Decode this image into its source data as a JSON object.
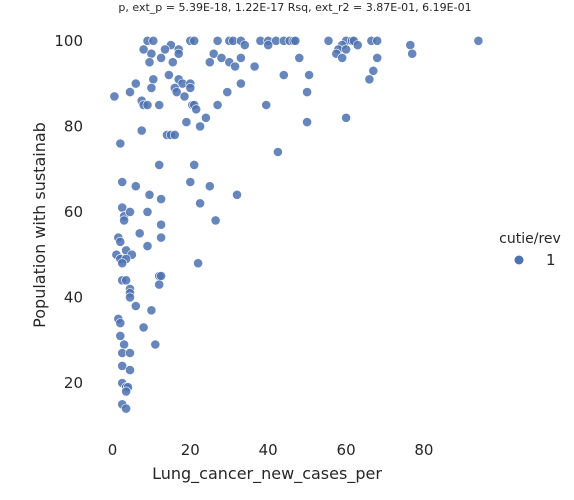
{
  "chart_data": {
    "type": "scatter",
    "title": "p, ext_p = 5.39E-18, 1.22E-17 Rsq, ext_r2 = 3.87E-01, 6.19E-01",
    "xlabel": "Lung_cancer_new_cases_per",
    "ylabel": "Population with sustainab",
    "xlim": [
      -5,
      98
    ],
    "ylim": [
      9,
      103
    ],
    "xticks": [
      0,
      20,
      40,
      60,
      80
    ],
    "yticks": [
      20,
      40,
      60,
      80,
      100
    ],
    "grid": false,
    "legend": {
      "title": "cutie/rev",
      "placement": "right",
      "entries": [
        "1"
      ]
    },
    "series": [
      {
        "name": "1",
        "color": "#4c72b0",
        "points": [
          [
            9,
            100
          ],
          [
            10.5,
            100
          ],
          [
            20,
            100
          ],
          [
            21,
            100
          ],
          [
            27,
            100
          ],
          [
            30,
            100
          ],
          [
            31,
            100
          ],
          [
            33,
            100
          ],
          [
            38,
            100
          ],
          [
            40,
            100
          ],
          [
            42,
            100
          ],
          [
            44,
            100
          ],
          [
            45.5,
            100
          ],
          [
            46.5,
            100
          ],
          [
            47,
            100
          ],
          [
            55.5,
            100
          ],
          [
            60,
            100
          ],
          [
            61.5,
            100
          ],
          [
            62,
            100
          ],
          [
            66.5,
            100
          ],
          [
            68,
            100
          ],
          [
            94,
            100
          ],
          [
            15,
            99
          ],
          [
            34,
            99
          ],
          [
            40,
            99
          ],
          [
            59,
            99
          ],
          [
            63,
            99
          ],
          [
            76.5,
            99
          ],
          [
            8,
            98
          ],
          [
            13.5,
            98
          ],
          [
            17,
            98
          ],
          [
            58,
            98
          ],
          [
            60,
            98
          ],
          [
            10,
            97
          ],
          [
            17,
            97
          ],
          [
            26,
            97
          ],
          [
            57.5,
            97
          ],
          [
            77,
            97
          ],
          [
            12.5,
            96
          ],
          [
            28,
            96
          ],
          [
            33,
            96
          ],
          [
            48,
            96
          ],
          [
            59,
            96
          ],
          [
            68,
            96
          ],
          [
            9.5,
            95
          ],
          [
            15.5,
            95
          ],
          [
            25,
            95
          ],
          [
            30,
            95
          ],
          [
            31.5,
            94
          ],
          [
            36.5,
            94
          ],
          [
            67,
            93
          ],
          [
            14.5,
            92
          ],
          [
            44,
            92
          ],
          [
            50.5,
            92
          ],
          [
            10.5,
            91
          ],
          [
            17,
            91
          ],
          [
            66,
            91
          ],
          [
            6,
            90
          ],
          [
            18,
            90
          ],
          [
            20,
            90
          ],
          [
            33,
            90
          ],
          [
            16,
            89
          ],
          [
            20,
            89
          ],
          [
            10,
            89
          ],
          [
            4.5,
            88
          ],
          [
            16.5,
            88
          ],
          [
            29.5,
            88
          ],
          [
            50,
            88
          ],
          [
            0.5,
            87
          ],
          [
            18.5,
            87
          ],
          [
            7.5,
            86
          ],
          [
            8,
            85
          ],
          [
            9,
            85
          ],
          [
            12,
            85
          ],
          [
            20.5,
            85
          ],
          [
            21,
            85
          ],
          [
            27,
            85
          ],
          [
            39.5,
            85
          ],
          [
            21.5,
            84
          ],
          [
            24,
            82
          ],
          [
            60,
            82
          ],
          [
            19,
            81
          ],
          [
            50,
            81
          ],
          [
            22.5,
            80
          ],
          [
            7.5,
            79
          ],
          [
            14,
            78
          ],
          [
            15,
            78
          ],
          [
            16,
            78
          ],
          [
            2,
            76
          ],
          [
            42.5,
            74
          ],
          [
            12,
            71
          ],
          [
            21,
            71
          ],
          [
            2.5,
            67
          ],
          [
            20,
            67
          ],
          [
            6,
            66
          ],
          [
            25,
            66
          ],
          [
            9.5,
            64
          ],
          [
            32,
            64
          ],
          [
            12.5,
            63
          ],
          [
            22.5,
            62
          ],
          [
            2.5,
            61
          ],
          [
            3,
            59
          ],
          [
            9,
            60
          ],
          [
            4.5,
            60
          ],
          [
            3,
            58
          ],
          [
            26.5,
            58
          ],
          [
            12.5,
            57
          ],
          [
            7,
            55
          ],
          [
            1.5,
            54
          ],
          [
            12.5,
            54
          ],
          [
            2,
            53
          ],
          [
            9,
            52
          ],
          [
            3.5,
            51
          ],
          [
            1,
            50
          ],
          [
            2.5,
            49
          ],
          [
            5,
            50
          ],
          [
            2,
            49
          ],
          [
            3.5,
            49
          ],
          [
            2.5,
            48
          ],
          [
            22,
            48
          ],
          [
            12,
            45
          ],
          [
            12.5,
            45
          ],
          [
            2.5,
            44
          ],
          [
            3.5,
            44
          ],
          [
            12,
            43
          ],
          [
            4.5,
            42
          ],
          [
            4.5,
            41
          ],
          [
            4.5,
            40
          ],
          [
            6,
            38
          ],
          [
            10,
            37
          ],
          [
            1.5,
            35
          ],
          [
            2,
            34
          ],
          [
            8,
            33
          ],
          [
            2,
            31
          ],
          [
            3,
            29
          ],
          [
            11,
            29
          ],
          [
            2.5,
            27
          ],
          [
            4.5,
            27
          ],
          [
            2.5,
            24
          ],
          [
            4.5,
            23
          ],
          [
            2.5,
            20
          ],
          [
            3.5,
            19
          ],
          [
            4,
            19
          ],
          [
            3.5,
            18
          ],
          [
            2.5,
            15
          ],
          [
            3.5,
            14
          ]
        ]
      }
    ]
  }
}
